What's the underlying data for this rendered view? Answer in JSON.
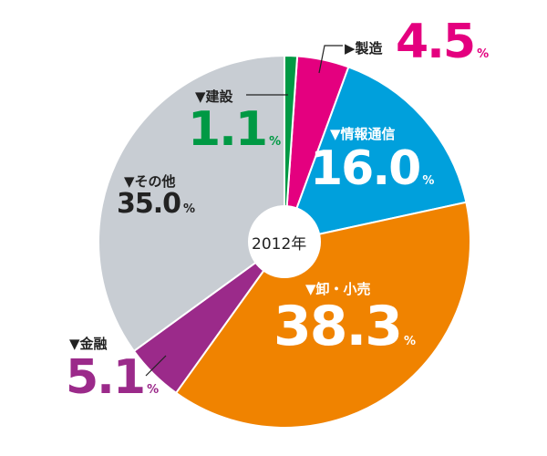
{
  "chart_data": {
    "type": "pie",
    "title": "",
    "center_label": "2012年",
    "unit": "%",
    "slices": [
      {
        "label": "▶製造",
        "value": 4.5,
        "value_text": "4.5",
        "color": "#e4007f"
      },
      {
        "label": "▼情報通信",
        "value": 16.0,
        "value_text": "16.0",
        "color": "#00a0dc"
      },
      {
        "label": "▼卸・小売",
        "value": 38.3,
        "value_text": "38.3",
        "color": "#f08300"
      },
      {
        "label": "▼金融",
        "value": 5.1,
        "value_text": "5.1",
        "color": "#9b2a8a"
      },
      {
        "label": "▼その他",
        "value": 35.0,
        "value_text": "35.0",
        "color": "#c8cdd3"
      },
      {
        "label": "▼建設",
        "value": 1.1,
        "value_text": "1.1",
        "color": "#009944"
      }
    ]
  }
}
